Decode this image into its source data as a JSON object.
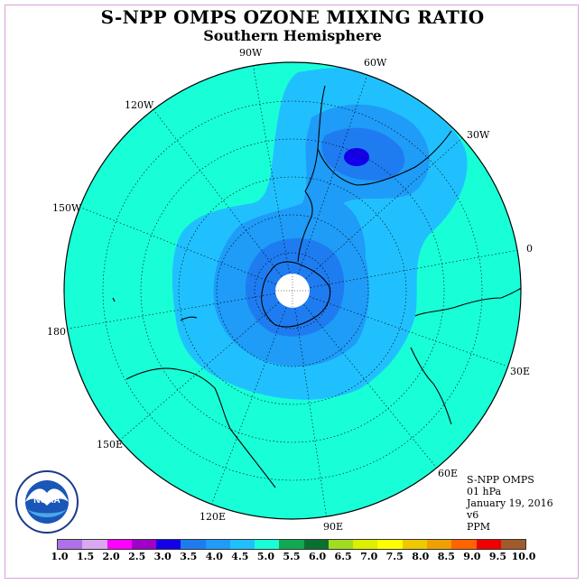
{
  "title": "S-NPP OMPS OZONE MIXING RATIO",
  "subtitle": "Southern Hemisphere",
  "longitudes": {
    "w90": "90W",
    "w60": "60W",
    "w120": "120W",
    "w30": "30W",
    "w150": "150W",
    "e0": "0",
    "l180": "180",
    "e30": "30E",
    "e150": "150E",
    "e60": "60E",
    "e120": "120E",
    "e90": "90E"
  },
  "info": {
    "instrument": "S-NPP OMPS",
    "level": "01 hPa",
    "date": "January 19, 2016",
    "version": "v6",
    "units": "PPM"
  },
  "logo": {
    "text": "NOAA"
  },
  "colorbar": {
    "ticks": [
      "1.0",
      "1.5",
      "2.0",
      "2.5",
      "3.0",
      "3.5",
      "4.0",
      "4.5",
      "5.0",
      "5.5",
      "6.0",
      "6.5",
      "7.0",
      "7.5",
      "8.0",
      "8.5",
      "9.0",
      "9.5",
      "10.0"
    ],
    "colors": [
      "#b070e8",
      "#d8a8f0",
      "#ff00ff",
      "#a000c8",
      "#1400e8",
      "#1e7cf0",
      "#1e9cf8",
      "#20c0ff",
      "#18ffd8",
      "#10a850",
      "#0a7030",
      "#a0dc20",
      "#dcf000",
      "#ffff00",
      "#f0c800",
      "#f0a000",
      "#ff6400",
      "#f00000",
      "#a05a2c"
    ]
  },
  "colors": {
    "c45": "#18ffd8",
    "c40": "#20c0ff",
    "c35": "#1e9cf8",
    "c30": "#1e7cf0",
    "c25": "#1400e8"
  }
}
